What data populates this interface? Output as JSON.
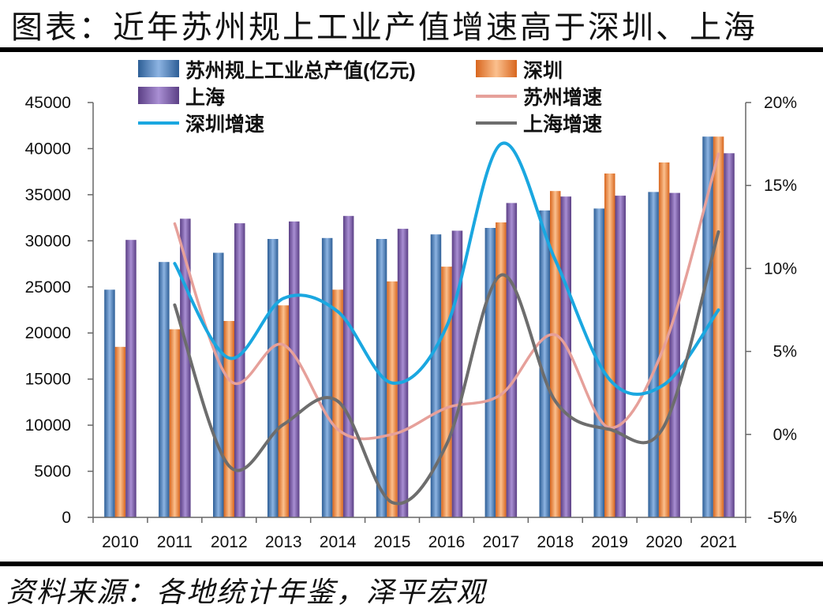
{
  "title": "图表：近年苏州规上工业产值增速高于深圳、上海",
  "source": "资料来源：各地统计年鉴，泽平宏观",
  "colors": {
    "suzhou_bar": "#4f81bd",
    "shenzhen_bar": "#f79646",
    "shanghai_bar": "#8064a2",
    "suzhou_growth": "#e6a09a",
    "shenzhen_growth": "#1aa7e0",
    "shanghai_growth": "#6d6d6d"
  },
  "chart_data": {
    "type": "bar",
    "categories": [
      "2010",
      "2011",
      "2012",
      "2013",
      "2014",
      "2015",
      "2016",
      "2017",
      "2018",
      "2019",
      "2020",
      "2021"
    ],
    "series": [
      {
        "name": "苏州规上工业总产值(亿元)",
        "type": "bar",
        "axis": "left",
        "values": [
          24700,
          27700,
          28700,
          30200,
          30300,
          30200,
          30700,
          31400,
          33300,
          33500,
          35300,
          41300
        ]
      },
      {
        "name": "深圳",
        "type": "bar",
        "axis": "left",
        "values": [
          18500,
          20400,
          21300,
          23000,
          24700,
          25600,
          27200,
          32000,
          35400,
          37300,
          38500,
          41300
        ]
      },
      {
        "name": "上海",
        "type": "bar",
        "axis": "left",
        "values": [
          30100,
          32400,
          31900,
          32100,
          32700,
          31300,
          31100,
          34100,
          34800,
          34900,
          35200,
          39500
        ]
      },
      {
        "name": "苏州增速",
        "type": "line",
        "axis": "right",
        "x": [
          "2011",
          "2012",
          "2013",
          "2014",
          "2015",
          "2016",
          "2017",
          "2018",
          "2019",
          "2020",
          "2021"
        ],
        "values": [
          12.7,
          3.3,
          5.4,
          0.3,
          0.0,
          1.6,
          2.4,
          6.0,
          0.4,
          5.3,
          16.9
        ]
      },
      {
        "name": "深圳增速",
        "type": "line",
        "axis": "right",
        "x": [
          "2011",
          "2012",
          "2013",
          "2014",
          "2015",
          "2016",
          "2017",
          "2018",
          "2019",
          "2020",
          "2021"
        ],
        "values": [
          10.3,
          4.6,
          8.2,
          7.4,
          3.1,
          6.5,
          17.5,
          10.5,
          3.3,
          3.0,
          7.5
        ]
      },
      {
        "name": "上海增速",
        "type": "line",
        "axis": "right",
        "x": [
          "2011",
          "2012",
          "2013",
          "2014",
          "2015",
          "2016",
          "2017",
          "2018",
          "2019",
          "2020",
          "2021"
        ],
        "values": [
          7.8,
          -1.9,
          0.6,
          2.0,
          -4.1,
          -0.6,
          9.6,
          2.0,
          0.3,
          0.5,
          12.2
        ]
      }
    ],
    "y_left": {
      "min": 0,
      "max": 45000,
      "ticks": [
        "0",
        "5000",
        "10000",
        "15000",
        "20000",
        "25000",
        "30000",
        "35000",
        "40000",
        "45000"
      ]
    },
    "y_right": {
      "min": -5,
      "max": 20,
      "ticks": [
        "-5%",
        "0%",
        "5%",
        "10%",
        "15%",
        "20%"
      ]
    },
    "legend": {
      "placement": "top"
    },
    "grid": false
  }
}
